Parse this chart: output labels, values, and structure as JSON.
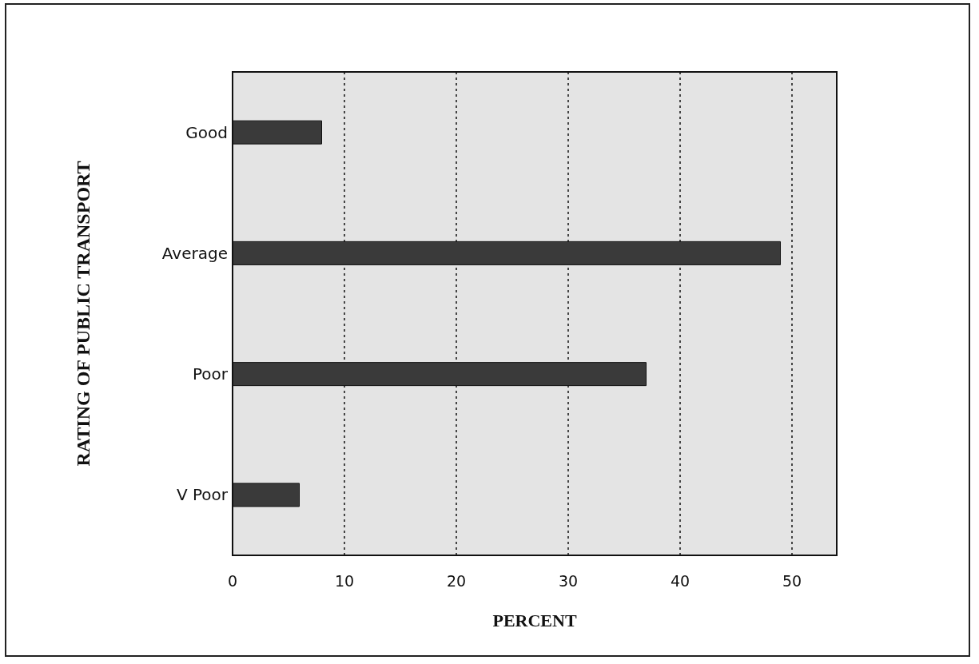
{
  "chart_data": {
    "type": "bar",
    "orientation": "horizontal",
    "xlabel": "PERCENT",
    "ylabel": "RATING OF PUBLIC TRANSPORT",
    "categories": [
      "Good",
      "Average",
      "Poor",
      "V Poor"
    ],
    "values": [
      8,
      49,
      37,
      6
    ],
    "color": "#3a3a3a",
    "xlim": [
      0,
      54
    ],
    "xticks": [
      0,
      10,
      20,
      30,
      40,
      50
    ],
    "grid": "x"
  }
}
